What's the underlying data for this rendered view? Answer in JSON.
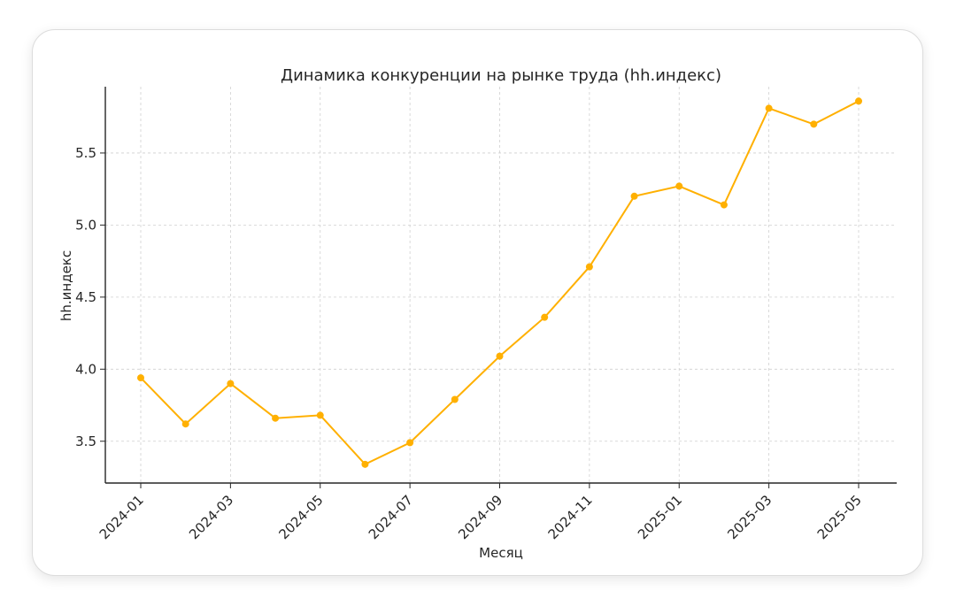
{
  "chart_data": {
    "type": "line",
    "title": "Динамика конкуренции на рынке труда (hh.индекс)",
    "xlabel": "Месяц",
    "ylabel": "hh.индекс",
    "x": [
      "2024-01",
      "2024-02",
      "2024-03",
      "2024-04",
      "2024-05",
      "2024-06",
      "2024-07",
      "2024-08",
      "2024-09",
      "2024-10",
      "2024-11",
      "2024-12",
      "2025-01",
      "2025-02",
      "2025-03",
      "2025-04",
      "2025-05"
    ],
    "x_tick_labels": [
      "2024-01",
      "2024-03",
      "2024-05",
      "2024-07",
      "2024-09",
      "2024-11",
      "2025-01",
      "2025-03",
      "2025-05"
    ],
    "y_ticks": [
      "3.5",
      "4.0",
      "4.5",
      "5.0",
      "5.5"
    ],
    "series": [
      {
        "values": [
          3.94,
          3.62,
          3.9,
          3.66,
          3.68,
          3.34,
          3.49,
          3.79,
          4.09,
          4.36,
          4.71,
          5.2,
          5.27,
          5.14,
          5.81,
          5.7,
          5.86
        ],
        "color": "#FFB000"
      }
    ],
    "ylim": [
      3.21,
      5.96
    ],
    "grid": true,
    "legend": "none"
  }
}
